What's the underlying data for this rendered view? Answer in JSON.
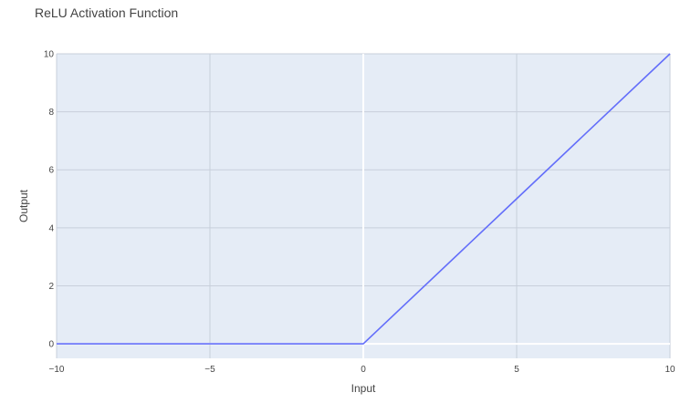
{
  "chart_data": {
    "type": "line",
    "title": "ReLU Activation Function",
    "xlabel": "Input",
    "ylabel": "Output",
    "xlim": [
      -10,
      10
    ],
    "ylim": [
      -0.5,
      10
    ],
    "x_ticks": [
      -10,
      -5,
      0,
      5,
      10
    ],
    "x_tick_labels": [
      "−10",
      "−5",
      "0",
      "5",
      "10"
    ],
    "y_ticks": [
      0,
      2,
      4,
      6,
      8,
      10
    ],
    "y_tick_labels": [
      "0",
      "2",
      "4",
      "6",
      "8",
      "10"
    ],
    "grid": true,
    "zeroline": true,
    "series": [
      {
        "color": "#636efa",
        "x": [
          -10,
          -5,
          0,
          5,
          10
        ],
        "y": [
          0,
          0,
          0,
          5,
          10
        ]
      }
    ]
  },
  "colors": {
    "plot_background": "#e5ecf6",
    "grid": "#c8cfdb",
    "zeroline": "#ffffff"
  }
}
